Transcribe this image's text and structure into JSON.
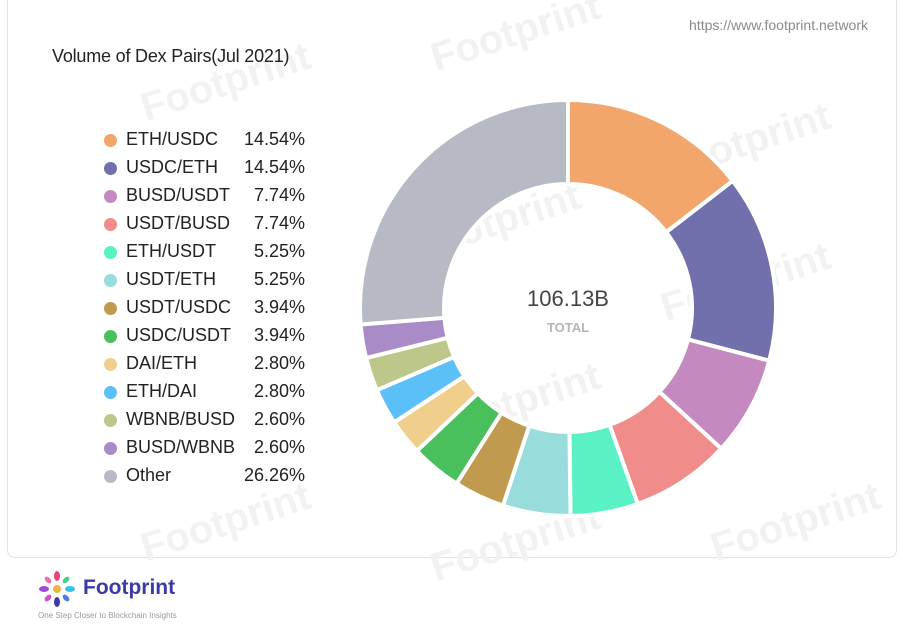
{
  "header": {
    "source_url": "https://www.footprint.network"
  },
  "chart_data": {
    "type": "pie",
    "title": "Volume of Dex Pairs(Jul 2021)",
    "center_value": "106.13B",
    "center_label": "TOTAL",
    "legend_placement": "left",
    "slices": [
      {
        "label": "ETH/USDC",
        "percent": 14.54,
        "percent_label": "14.54%",
        "color": "#f2a66c"
      },
      {
        "label": "USDC/ETH",
        "percent": 14.54,
        "percent_label": "14.54%",
        "color": "#7170ad"
      },
      {
        "label": "BUSD/USDT",
        "percent": 7.74,
        "percent_label": "7.74%",
        "color": "#c48ac0"
      },
      {
        "label": "USDT/BUSD",
        "percent": 7.74,
        "percent_label": "7.74%",
        "color": "#f08d8b"
      },
      {
        "label": "ETH/USDT",
        "percent": 5.25,
        "percent_label": "5.25%",
        "color": "#5af2c4"
      },
      {
        "label": "USDT/ETH",
        "percent": 5.25,
        "percent_label": "5.25%",
        "color": "#99dcdc"
      },
      {
        "label": "USDT/USDC",
        "percent": 3.94,
        "percent_label": "3.94%",
        "color": "#c09a4f"
      },
      {
        "label": "USDC/USDT",
        "percent": 3.94,
        "percent_label": "3.94%",
        "color": "#4ac05c"
      },
      {
        "label": "DAI/ETH",
        "percent": 2.8,
        "percent_label": "2.80%",
        "color": "#f0cf8c"
      },
      {
        "label": "ETH/DAI",
        "percent": 2.8,
        "percent_label": "2.80%",
        "color": "#5cc0f8"
      },
      {
        "label": "WBNB/BUSD",
        "percent": 2.6,
        "percent_label": "2.60%",
        "color": "#bec78a"
      },
      {
        "label": "BUSD/WBNB",
        "percent": 2.6,
        "percent_label": "2.60%",
        "color": "#a98bc8"
      },
      {
        "label": "Other",
        "percent": 26.26,
        "percent_label": "26.26%",
        "color": "#b7b9c4"
      }
    ]
  },
  "watermark": {
    "text": "Footprint"
  },
  "footer": {
    "brand": "Footprint",
    "tagline": "One Step Closer to Blockchain Insights",
    "brand_color": "#3c3aa8"
  }
}
